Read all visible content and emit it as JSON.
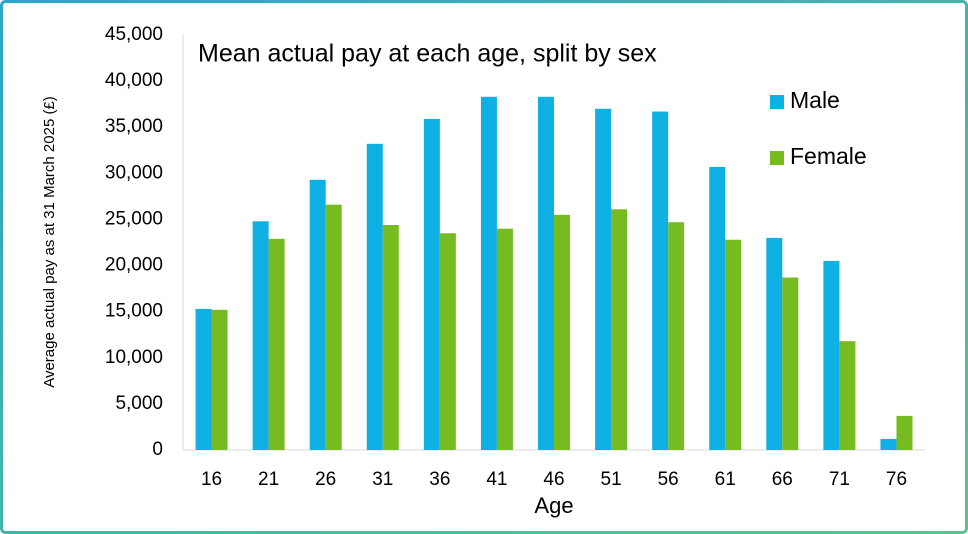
{
  "chart_data": {
    "type": "bar",
    "title": "Mean actual pay at each age, split by sex",
    "x_label": "Age",
    "y_label": "Average actual pay as at 31 March 2025 (£)",
    "categories": [
      "16",
      "21",
      "26",
      "31",
      "36",
      "41",
      "46",
      "51",
      "56",
      "61",
      "66",
      "71",
      "76"
    ],
    "series": [
      {
        "name": "Male",
        "color": "#0fb0e3",
        "values": [
          15300,
          24800,
          29300,
          33200,
          35900,
          38300,
          38300,
          37000,
          36700,
          30700,
          23000,
          20500,
          1200
        ]
      },
      {
        "name": "Female",
        "color": "#76bc21",
        "values": [
          15200,
          22900,
          26600,
          24400,
          23500,
          24000,
          25500,
          26100,
          24700,
          22800,
          18700,
          11800,
          3700
        ]
      }
    ],
    "ylim": [
      0,
      45000
    ],
    "yticks": [
      {
        "value": 0,
        "label": "0"
      },
      {
        "value": 5000,
        "label": "5,000"
      },
      {
        "value": 10000,
        "label": "10,000"
      },
      {
        "value": 15000,
        "label": "15,000"
      },
      {
        "value": 20000,
        "label": "20,000"
      },
      {
        "value": 25000,
        "label": "25,000"
      },
      {
        "value": 30000,
        "label": "30,000"
      },
      {
        "value": 35000,
        "label": "35,000"
      },
      {
        "value": 40000,
        "label": "40,000"
      },
      {
        "value": 45000,
        "label": "45,000"
      }
    ],
    "grid": false,
    "legend": "top-right"
  }
}
